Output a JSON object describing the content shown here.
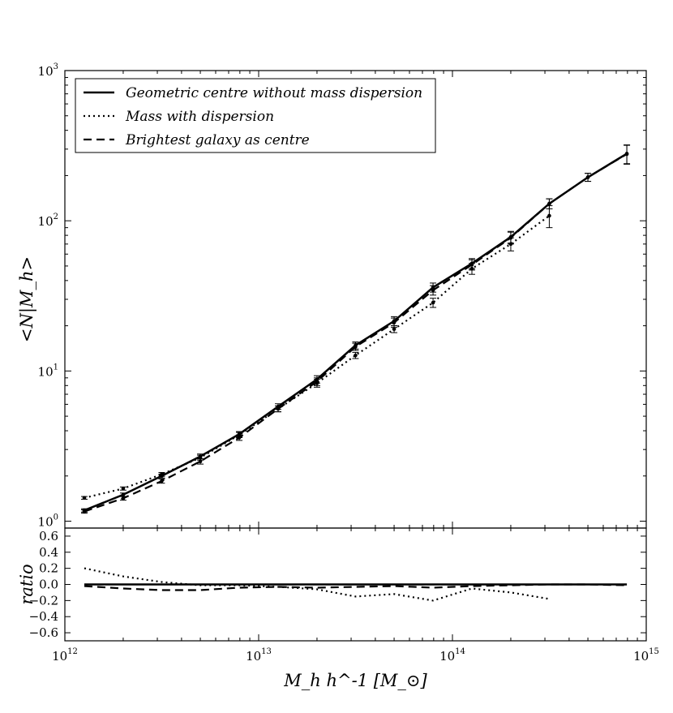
{
  "chart_data": [
    {
      "type": "line",
      "panel": "main",
      "xscale": "log",
      "yscale": "log",
      "xlim": [
        1000000000000.0,
        1000000000000000.0
      ],
      "ylim": [
        0.9,
        1000
      ],
      "ylabel": "<N|M_h>",
      "xtick_labels": [
        {
          "value": 1000000000000.0,
          "base": "10",
          "exp": "12"
        },
        {
          "value": 10000000000000.0,
          "base": "10",
          "exp": "13"
        },
        {
          "value": 100000000000000.0,
          "base": "10",
          "exp": "14"
        },
        {
          "value": 1000000000000000.0,
          "base": "10",
          "exp": "15"
        }
      ],
      "ytick_labels": [
        {
          "value": 1,
          "base": "10",
          "exp": "0"
        },
        {
          "value": 10,
          "base": "10",
          "exp": "1"
        },
        {
          "value": 100,
          "base": "10",
          "exp": "2"
        },
        {
          "value": 1000,
          "base": "10",
          "exp": "3"
        }
      ],
      "legend_position": "top-left",
      "series": [
        {
          "name": "Geometric centre without mass dispersion",
          "style": "solid",
          "x": [
            1260000000000.0,
            2000000000000.0,
            3160000000000.0,
            5000000000000.0,
            7940000000000.0,
            12600000000000.0,
            20000000000000.0,
            31600000000000.0,
            50000000000000.0,
            79400000000000.0,
            126000000000000.0,
            200000000000000.0,
            316000000000000.0,
            500000000000000.0,
            794000000000000.0
          ],
          "y": [
            1.18,
            1.5,
            2.0,
            2.7,
            3.8,
            5.8,
            8.8,
            14.8,
            21.5,
            36.0,
            52.0,
            78.0,
            130.0,
            195.0,
            280.0
          ],
          "yerr": [
            0.03,
            0.04,
            0.06,
            0.1,
            0.15,
            0.25,
            0.5,
            0.8,
            1.5,
            2.5,
            4.0,
            7.0,
            10.0,
            12.0,
            40.0
          ]
        },
        {
          "name": "Mass with dispersion",
          "style": "dotted",
          "x": [
            1260000000000.0,
            2000000000000.0,
            3160000000000.0,
            5000000000000.0,
            7940000000000.0,
            12600000000000.0,
            20000000000000.0,
            31600000000000.0,
            50000000000000.0,
            79400000000000.0,
            126000000000000.0,
            200000000000000.0,
            316000000000000.0
          ],
          "y": [
            1.43,
            1.65,
            2.05,
            2.65,
            3.75,
            5.6,
            8.3,
            12.7,
            19.0,
            28.5,
            48.0,
            70.0,
            108.0
          ],
          "yerr": [
            0.03,
            0.04,
            0.06,
            0.1,
            0.15,
            0.25,
            0.5,
            0.6,
            1.0,
            2.0,
            4.0,
            7.0,
            18.0
          ]
        },
        {
          "name": "Brightest galaxy as centre",
          "style": "dashed",
          "x": [
            1260000000000.0,
            2000000000000.0,
            3160000000000.0,
            5000000000000.0,
            7940000000000.0,
            12600000000000.0,
            20000000000000.0,
            31600000000000.0,
            50000000000000.0,
            79400000000000.0,
            126000000000000.0,
            200000000000000.0,
            316000000000000.0,
            500000000000000.0,
            794000000000000.0
          ],
          "y": [
            1.16,
            1.42,
            1.85,
            2.5,
            3.6,
            5.6,
            8.5,
            14.5,
            21.0,
            34.5,
            51.0,
            77.0,
            130.0,
            195.0,
            278.0
          ],
          "yerr": [
            0.03,
            0.04,
            0.06,
            0.1,
            0.15,
            0.25,
            0.5,
            0.8,
            1.5,
            2.5,
            4.0,
            7.0,
            10.0,
            12.0,
            40.0
          ]
        }
      ]
    },
    {
      "type": "line",
      "panel": "ratio",
      "xscale": "log",
      "xlim": [
        1000000000000.0,
        1000000000000000.0
      ],
      "ylim": [
        -0.7,
        0.7
      ],
      "xlabel": "M_h h^-1 [M_⊙]",
      "ylabel": "ratio",
      "ytick_labels": [
        "0.6",
        "0.4",
        "0.2",
        "0.0",
        "−0.2",
        "−0.4",
        "−0.6"
      ],
      "ytick_values": [
        0.6,
        0.4,
        0.2,
        0.0,
        -0.2,
        -0.4,
        -0.6
      ],
      "series": [
        {
          "name": "Geometric centre without mass dispersion",
          "style": "solid",
          "x": [
            1260000000000.0,
            794000000000000.0
          ],
          "y": [
            0.0,
            0.0
          ]
        },
        {
          "name": "Mass with dispersion",
          "style": "dotted",
          "x": [
            1260000000000.0,
            2000000000000.0,
            3160000000000.0,
            5000000000000.0,
            7940000000000.0,
            12600000000000.0,
            20000000000000.0,
            31600000000000.0,
            50000000000000.0,
            79400000000000.0,
            126000000000000.0,
            200000000000000.0,
            316000000000000.0
          ],
          "y": [
            0.2,
            0.1,
            0.03,
            -0.01,
            -0.01,
            -0.03,
            -0.06,
            -0.15,
            -0.12,
            -0.2,
            -0.05,
            -0.1,
            -0.18
          ]
        },
        {
          "name": "Brightest galaxy as centre",
          "style": "dashed",
          "x": [
            1260000000000.0,
            2000000000000.0,
            3160000000000.0,
            5000000000000.0,
            7940000000000.0,
            12600000000000.0,
            20000000000000.0,
            31600000000000.0,
            50000000000000.0,
            79400000000000.0,
            126000000000000.0,
            200000000000000.0,
            316000000000000.0,
            500000000000000.0,
            794000000000000.0
          ],
          "y": [
            -0.02,
            -0.05,
            -0.07,
            -0.07,
            -0.04,
            -0.03,
            -0.04,
            -0.03,
            -0.02,
            -0.04,
            -0.02,
            -0.01,
            0.0,
            0.0,
            -0.01
          ]
        }
      ]
    }
  ]
}
